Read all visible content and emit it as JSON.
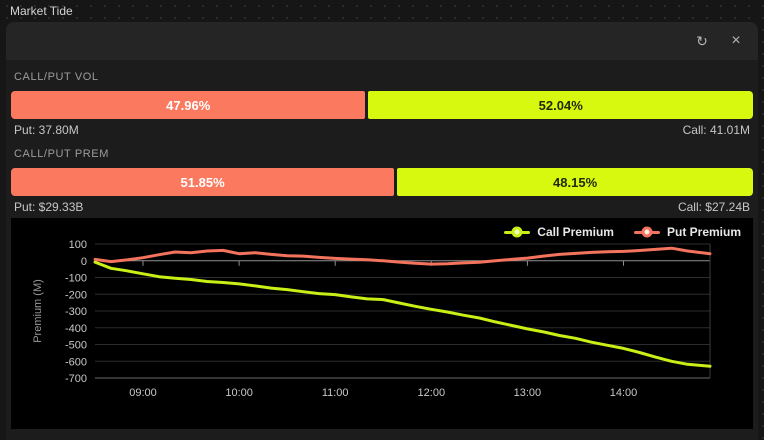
{
  "window": {
    "title": "Market Tide"
  },
  "toolbar": {
    "refresh_glyph": "↻",
    "close_glyph": "×"
  },
  "vol_section": {
    "label": "CALL/PUT VOL",
    "put_pct": 47.96,
    "put_pct_label": "47.96%",
    "call_pct": 52.04,
    "call_pct_label": "52.04%",
    "put_stat": "Put: 37.80M",
    "call_stat": "Call: 41.01M"
  },
  "prem_section": {
    "label": "CALL/PUT PREM",
    "put_pct": 51.85,
    "put_pct_label": "51.85%",
    "call_pct": 48.15,
    "call_pct_label": "48.15%",
    "put_stat": "Put: $29.33B",
    "call_stat": "Call: $27.24B"
  },
  "colors": {
    "put_bar": "#fb7a5f",
    "call_bar": "#d7f90f",
    "zero_axis": "#8f8f8f",
    "gridline": "#2c2c2c",
    "baseline": "#6a6a6a",
    "tick_text": "#c9c9c9",
    "axis_title_text": "#999999"
  },
  "chart_data": {
    "type": "line",
    "title": "",
    "xlabel": "",
    "ylabel": "Premium (M)",
    "ylim": [
      -700,
      100
    ],
    "yticks": [
      100,
      0,
      -100,
      -200,
      -300,
      -400,
      -500,
      -600,
      -700
    ],
    "xticks": [
      "09:00",
      "10:00",
      "11:00",
      "12:00",
      "13:00",
      "14:00"
    ],
    "x_range": [
      "08:30",
      "14:54"
    ],
    "grid": "horizontal",
    "legend_position": "top-right",
    "x": [
      "08:30",
      "08:40",
      "08:50",
      "09:00",
      "09:10",
      "09:20",
      "09:30",
      "09:40",
      "09:50",
      "10:00",
      "10:10",
      "10:20",
      "10:30",
      "10:40",
      "10:50",
      "11:00",
      "11:10",
      "11:20",
      "11:30",
      "11:40",
      "11:50",
      "12:00",
      "12:10",
      "12:20",
      "12:30",
      "12:40",
      "12:50",
      "13:00",
      "13:10",
      "13:20",
      "13:30",
      "13:40",
      "13:50",
      "14:00",
      "14:10",
      "14:20",
      "14:30",
      "14:40",
      "14:54"
    ],
    "series": [
      {
        "name": "Call Premium",
        "color": "#c8ef16",
        "marker_center": "#eefcc0",
        "values": [
          -8,
          -45,
          -60,
          -78,
          -95,
          -105,
          -112,
          -124,
          -130,
          -138,
          -150,
          -163,
          -172,
          -185,
          -196,
          -202,
          -216,
          -228,
          -232,
          -252,
          -272,
          -290,
          -306,
          -325,
          -342,
          -365,
          -386,
          -407,
          -425,
          -446,
          -463,
          -486,
          -505,
          -523,
          -548,
          -575,
          -600,
          -618,
          -630
        ]
      },
      {
        "name": "Put Premium",
        "color": "#f4735c",
        "marker_center": "#ffece6",
        "values": [
          8,
          -5,
          5,
          18,
          36,
          52,
          48,
          58,
          62,
          42,
          48,
          38,
          30,
          28,
          20,
          14,
          10,
          6,
          0,
          -8,
          -15,
          -20,
          -18,
          -13,
          -9,
          0,
          8,
          16,
          28,
          38,
          44,
          50,
          54,
          56,
          61,
          68,
          75,
          58,
          42
        ]
      }
    ]
  }
}
